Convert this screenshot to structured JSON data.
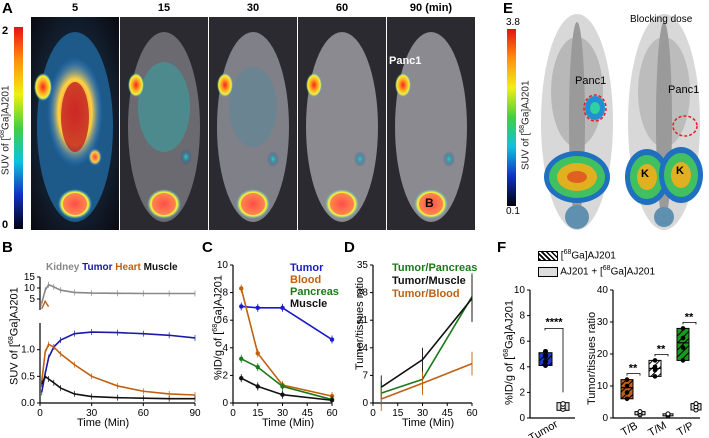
{
  "panels": {
    "A": {
      "label": "A",
      "timepoints": [
        "5",
        "15",
        "30",
        "60",
        "90 (min)"
      ],
      "colorbar": {
        "max": "2",
        "min": "0",
        "label_prefix": "SUV of [",
        "isotope": "68",
        "label_suffix": "Ga]AJ201"
      },
      "annotations": {
        "tumor": "Panc1",
        "bladder": "B"
      }
    },
    "B": {
      "label": "B",
      "ylabel_prefix": "SUV of [",
      "isotope": "68",
      "ylabel_suffix": "Ga]AJ201",
      "xlabel": "Time (Min)",
      "legend": [
        "Kidney",
        "Tumor",
        "Heart",
        "Muscle"
      ],
      "upper_yticks": [
        "5",
        "10",
        "15"
      ],
      "lower_yticks": [
        "0.0",
        "0.5",
        "1.0"
      ],
      "xticks": [
        "0",
        "30",
        "60",
        "90"
      ]
    },
    "C": {
      "label": "C",
      "ylabel_prefix": "%ID/g of [",
      "isotope": "68",
      "ylabel_suffix": "Ga]AJ201",
      "xlabel": "Time (Min)",
      "legend": [
        "Tumor",
        "Blood",
        "Pancreas",
        "Muscle"
      ],
      "yticks": [
        "0",
        "2",
        "4",
        "6",
        "8",
        "10"
      ],
      "xticks": [
        "0",
        "15",
        "30",
        "45",
        "60"
      ]
    },
    "D": {
      "label": "D",
      "ylabel": "Tumor/tissues ratio",
      "xlabel": "Time (Min)",
      "legend": [
        "Tumor/Pancreas",
        "Tumor/Muscle",
        "Tumor/Blood"
      ],
      "yticks": [
        "0",
        "7",
        "14",
        "21",
        "28",
        "35"
      ],
      "xticks": [
        "0",
        "15",
        "30",
        "45",
        "60"
      ]
    },
    "E": {
      "label": "E",
      "colorbar": {
        "max": "3.8",
        "min": "0.1",
        "label_prefix": "SUV of [",
        "isotope": "68",
        "label_suffix": "Ga]AJ201"
      },
      "blocking_title": "Blocking dose",
      "annotations": {
        "tumor_left": "Panc1",
        "tumor_right": "Panc1",
        "kidney": "K"
      }
    },
    "F": {
      "label": "F",
      "legend": [
        {
          "prefix": "[",
          "isotope": "68",
          "suffix": "Ga]AJ201"
        },
        {
          "prefix": "AJ201 + [",
          "isotope": "68",
          "suffix": "Ga]AJ201"
        }
      ],
      "left": {
        "ylabel_prefix": "%ID/g of [",
        "isotope": "68",
        "ylabel_suffix": "Ga]AJ201",
        "yticks": [
          "0",
          "2",
          "4",
          "6",
          "8",
          "10"
        ],
        "xtick": "Tumor",
        "sig": "****"
      },
      "right": {
        "ylabel": "Tumor/tissues ratio",
        "yticks": [
          "0",
          "10",
          "20",
          "30",
          "40"
        ],
        "xticks": [
          "T/B",
          "T/M",
          "T/P"
        ],
        "sig": [
          "**",
          "**",
          "**"
        ]
      }
    }
  },
  "chart_data": [
    {
      "panel": "B",
      "type": "line",
      "title": "",
      "xlabel": "Time (Min)",
      "ylabel": "SUV of [68Ga]AJ201",
      "xlim": [
        0,
        90
      ],
      "ylim_upper": [
        0,
        15
      ],
      "ylim_lower": [
        0,
        1.5
      ],
      "series": [
        {
          "name": "Kidney",
          "color": "#888888",
          "x": [
            1,
            3,
            5,
            8,
            12,
            20,
            30,
            45,
            60,
            75,
            90
          ],
          "y": [
            3,
            9,
            11.5,
            10.5,
            9,
            8,
            7.7,
            7.6,
            7.5,
            7.5,
            7.5
          ]
        },
        {
          "name": "Tumor",
          "color": "#1a1aa6",
          "x": [
            1,
            3,
            5,
            8,
            12,
            20,
            30,
            45,
            60,
            75,
            90
          ],
          "y": [
            0.2,
            0.55,
            0.85,
            1.05,
            1.18,
            1.3,
            1.33,
            1.32,
            1.3,
            1.27,
            1.22
          ]
        },
        {
          "name": "Heart",
          "color": "#c06010",
          "x": [
            1,
            3,
            5,
            8,
            12,
            20,
            30,
            45,
            60,
            75,
            90
          ],
          "y": [
            0.4,
            0.95,
            1.1,
            1.05,
            0.92,
            0.72,
            0.5,
            0.32,
            0.22,
            0.17,
            0.15
          ]
        },
        {
          "name": "Muscle",
          "color": "#111111",
          "x": [
            1,
            3,
            5,
            8,
            12,
            20,
            30,
            45,
            60,
            75,
            90
          ],
          "y": [
            0.35,
            0.5,
            0.45,
            0.38,
            0.28,
            0.17,
            0.12,
            0.1,
            0.09,
            0.08,
            0.08
          ]
        }
      ]
    },
    {
      "panel": "C",
      "type": "line",
      "title": "",
      "xlabel": "Time (Min)",
      "ylabel": "%ID/g of [68Ga]AJ201",
      "xlim": [
        0,
        60
      ],
      "ylim": [
        0,
        10
      ],
      "series": [
        {
          "name": "Tumor",
          "color": "#1a1acc",
          "x": [
            5,
            15,
            30,
            60
          ],
          "y": [
            7.0,
            6.9,
            6.9,
            4.6
          ]
        },
        {
          "name": "Blood",
          "color": "#c06010",
          "x": [
            5,
            15,
            30,
            60
          ],
          "y": [
            8.3,
            3.6,
            1.3,
            0.5
          ]
        },
        {
          "name": "Pancreas",
          "color": "#1a7a1a",
          "x": [
            5,
            15,
            30,
            60
          ],
          "y": [
            3.2,
            2.6,
            1.2,
            0.25
          ]
        },
        {
          "name": "Muscle",
          "color": "#111111",
          "x": [
            5,
            15,
            30,
            60
          ],
          "y": [
            1.8,
            1.2,
            0.6,
            0.2
          ]
        }
      ]
    },
    {
      "panel": "D",
      "type": "line",
      "title": "",
      "xlabel": "Time (Min)",
      "ylabel": "Tumor/tissues ratio",
      "xlim": [
        0,
        60
      ],
      "ylim": [
        0,
        35
      ],
      "series": [
        {
          "name": "Tumor/Pancreas",
          "color": "#1a7a1a",
          "x": [
            5,
            30,
            60
          ],
          "y": [
            2.5,
            6.0,
            27.0
          ]
        },
        {
          "name": "Tumor/Muscle",
          "color": "#111111",
          "x": [
            5,
            30,
            60
          ],
          "y": [
            4.0,
            11.0,
            26.5
          ]
        },
        {
          "name": "Tumor/Blood",
          "color": "#c06010",
          "x": [
            5,
            30,
            60
          ],
          "y": [
            1.0,
            5.0,
            10.0
          ]
        }
      ]
    },
    {
      "panel": "F-left",
      "type": "bar",
      "title": "",
      "xlabel": "",
      "ylabel": "%ID/g of [68Ga]AJ201",
      "categories": [
        "Tumor"
      ],
      "ylim": [
        0,
        10
      ],
      "series": [
        {
          "name": "[68Ga]AJ201",
          "values": [
            4.7
          ],
          "points": [
            4.1,
            4.4,
            4.9,
            5.2,
            4.8
          ]
        },
        {
          "name": "AJ201 + [68Ga]AJ201",
          "values": [
            0.9
          ],
          "points": [
            0.7,
            0.9,
            1.1
          ]
        }
      ]
    },
    {
      "panel": "F-right",
      "type": "bar",
      "title": "",
      "xlabel": "",
      "ylabel": "Tumor/tissues ratio",
      "categories": [
        "T/B",
        "T/M",
        "T/P"
      ],
      "ylim": [
        0,
        40
      ],
      "series": [
        {
          "name": "[68Ga]AJ201",
          "values": [
            9.5,
            15.5,
            23.5
          ],
          "points": [
            [
              6,
              8,
              10,
              12
            ],
            [
              13,
              15,
              16,
              18
            ],
            [
              18,
              22,
              25,
              28
            ]
          ]
        },
        {
          "name": "AJ201 + [68Ga]AJ201",
          "values": [
            1.5,
            1.0,
            3.5
          ],
          "points": [
            [
              1,
              1.5,
              2
            ],
            [
              0.7,
              1,
              1.3
            ],
            [
              2.5,
              3.5,
              4.5
            ]
          ]
        }
      ]
    }
  ]
}
